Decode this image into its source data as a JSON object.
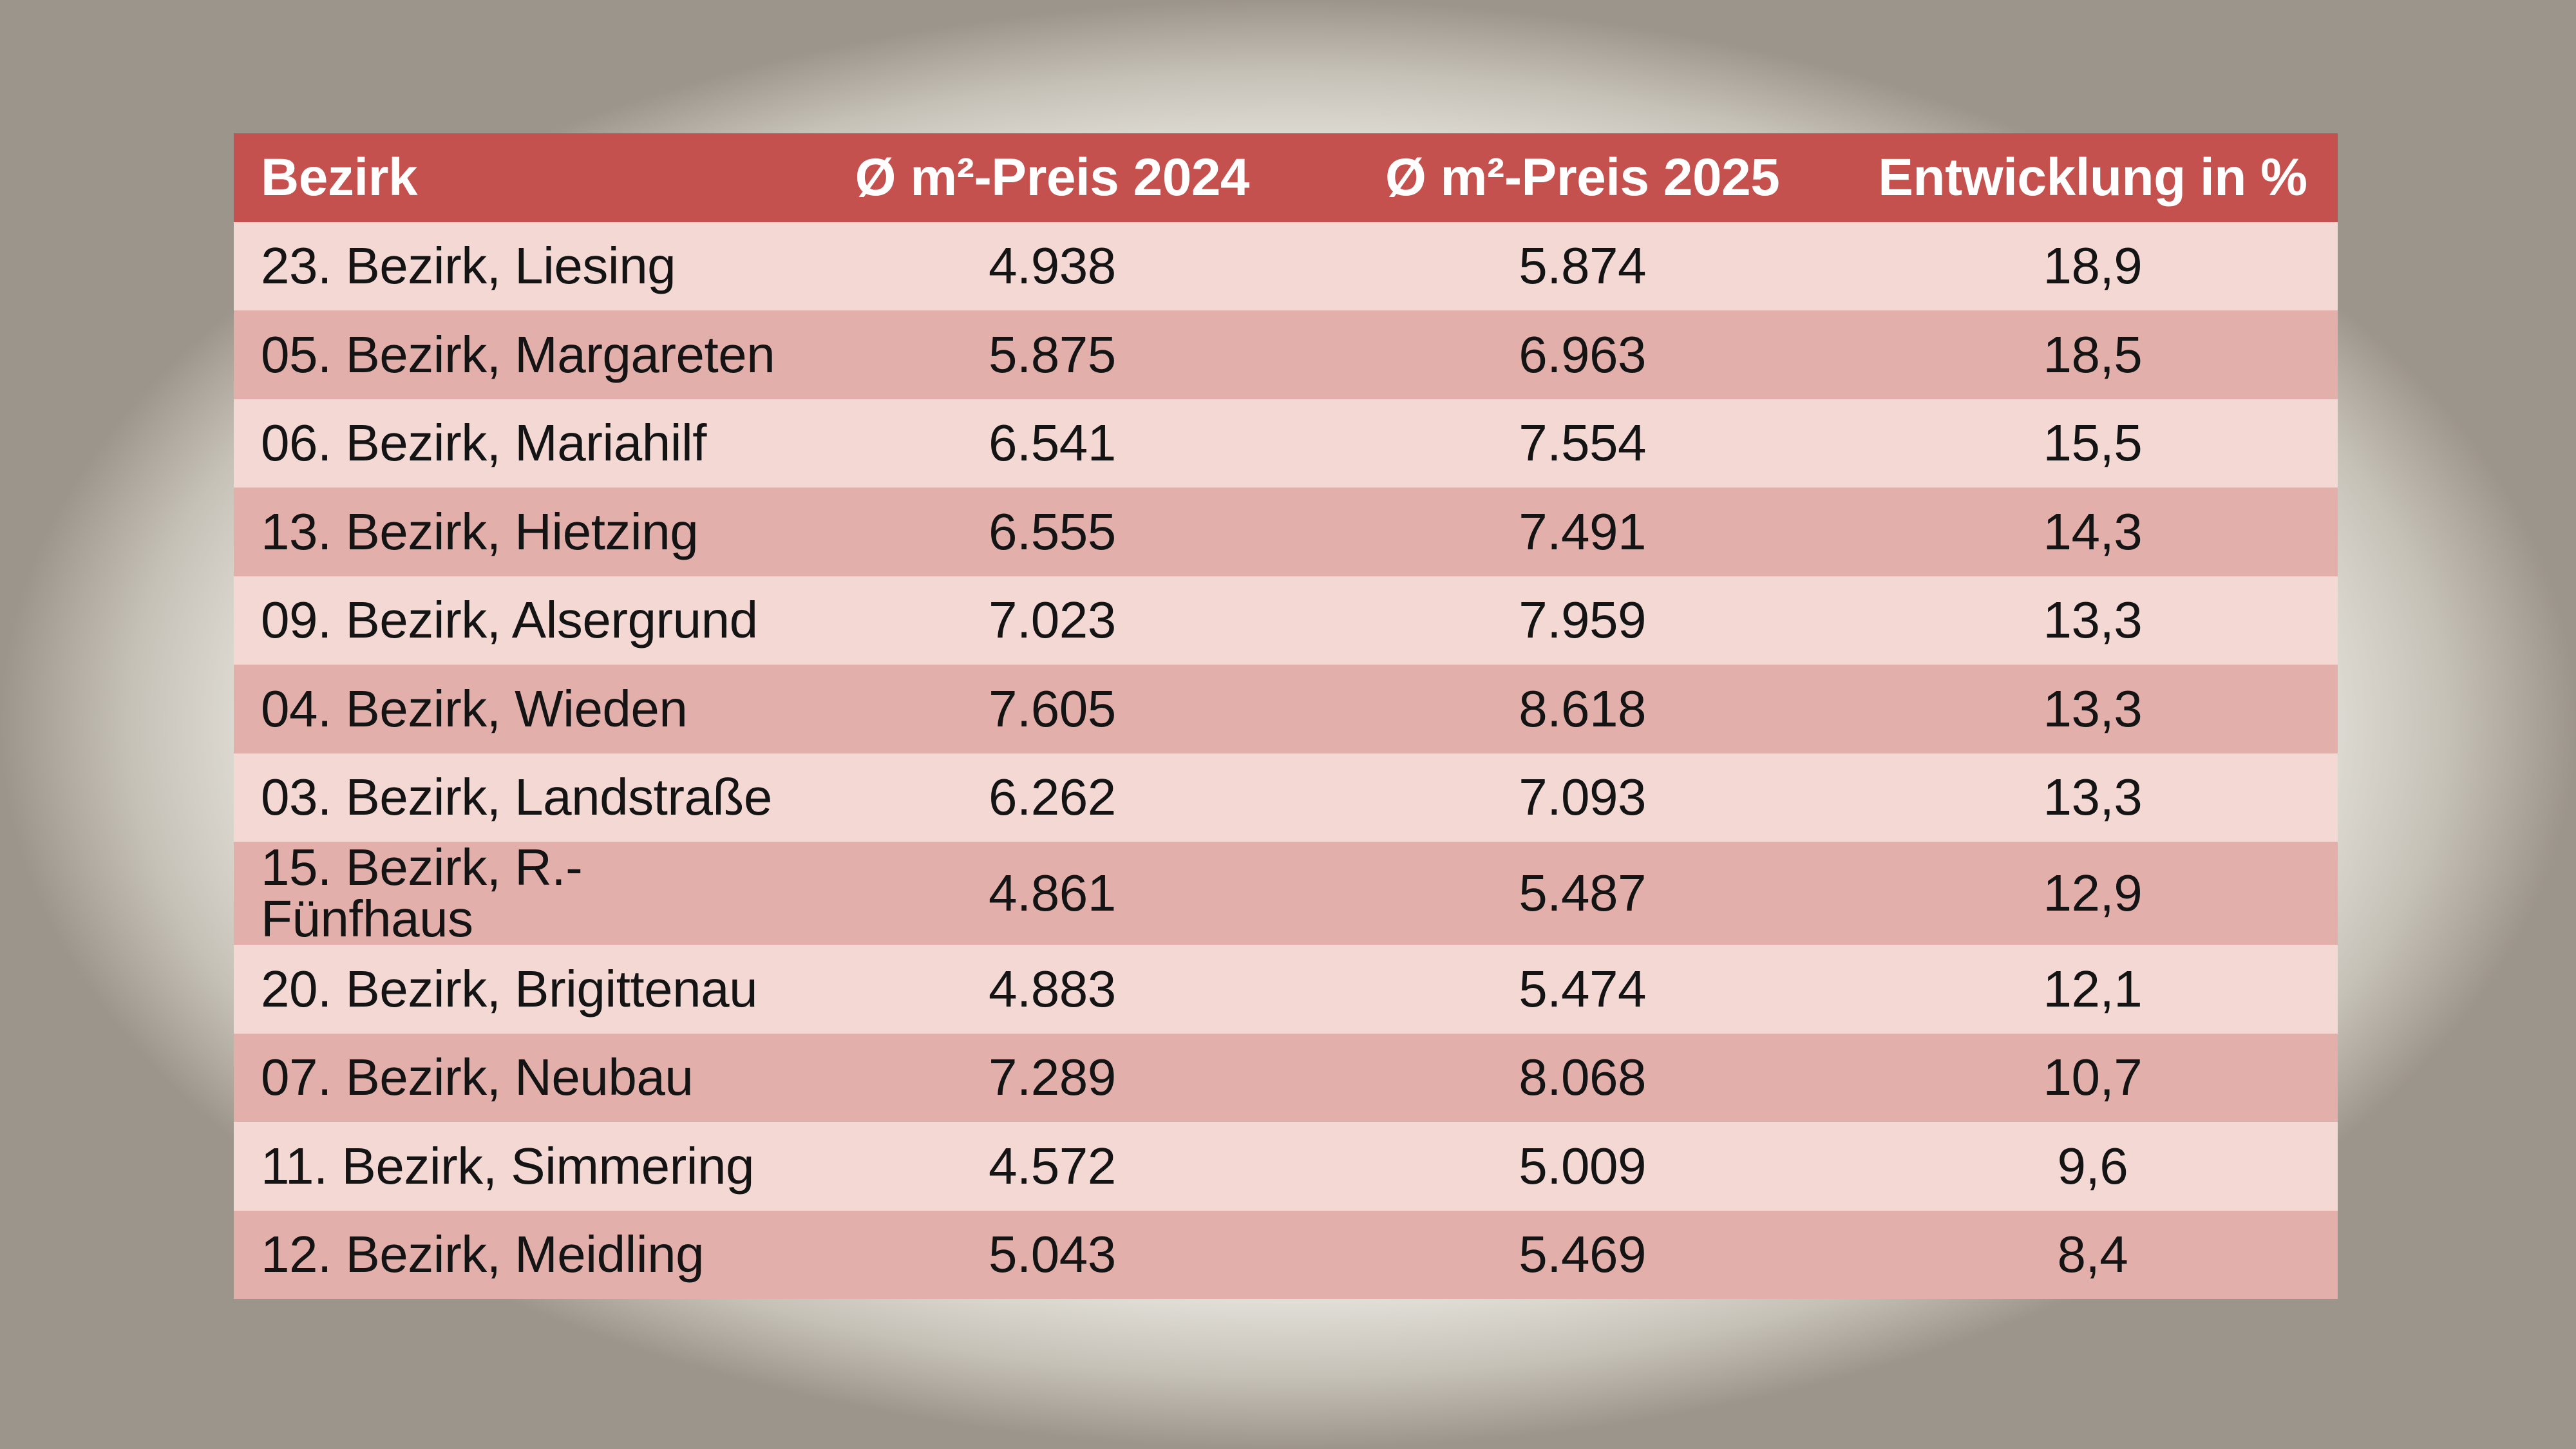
{
  "colors": {
    "page_edge": "#9c958c",
    "header_bg": "#c5514e",
    "header_text": "#ffffff",
    "row_light": "#f4d8d4",
    "row_dark": "#e2afab",
    "row_text": "#141414"
  },
  "chart_data": {
    "type": "table",
    "columns": [
      "Bezirk",
      "Ø m²-Preis 2024",
      "Ø m²-Preis 2025",
      "Entwicklung in %"
    ],
    "rows": [
      {
        "bezirk": "23. Bezirk, Liesing",
        "preis_2024": "4.938",
        "preis_2025": "5.874",
        "entwicklung": "18,9"
      },
      {
        "bezirk": "05. Bezirk, Margareten",
        "preis_2024": "5.875",
        "preis_2025": "6.963",
        "entwicklung": "18,5"
      },
      {
        "bezirk": "06. Bezirk, Mariahilf",
        "preis_2024": "6.541",
        "preis_2025": "7.554",
        "entwicklung": "15,5"
      },
      {
        "bezirk": "13. Bezirk, Hietzing",
        "preis_2024": "6.555",
        "preis_2025": "7.491",
        "entwicklung": "14,3"
      },
      {
        "bezirk": "09. Bezirk, Alsergrund",
        "preis_2024": "7.023",
        "preis_2025": "7.959",
        "entwicklung": "13,3"
      },
      {
        "bezirk": "04. Bezirk, Wieden",
        "preis_2024": "7.605",
        "preis_2025": "8.618",
        "entwicklung": "13,3"
      },
      {
        "bezirk": "03. Bezirk, Landstraße",
        "preis_2024": "6.262",
        "preis_2025": "7.093",
        "entwicklung": "13,3"
      },
      {
        "bezirk": "15. Bezirk, R.-Fünfhaus",
        "preis_2024": "4.861",
        "preis_2025": "5.487",
        "entwicklung": "12,9"
      },
      {
        "bezirk": "20. Bezirk, Brigittenau",
        "preis_2024": "4.883",
        "preis_2025": "5.474",
        "entwicklung": "12,1"
      },
      {
        "bezirk": "07. Bezirk, Neubau",
        "preis_2024": "7.289",
        "preis_2025": "8.068",
        "entwicklung": "10,7"
      },
      {
        "bezirk": "11. Bezirk, Simmering",
        "preis_2024": "4.572",
        "preis_2025": "5.009",
        "entwicklung": "9,6"
      },
      {
        "bezirk": "12. Bezirk, Meidling",
        "preis_2024": "5.043",
        "preis_2025": "5.469",
        "entwicklung": "8,4"
      }
    ]
  }
}
